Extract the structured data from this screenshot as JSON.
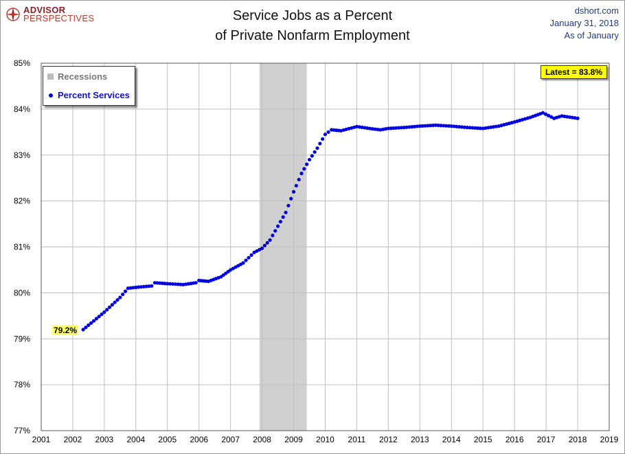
{
  "header": {
    "logo_line1": "ADVISOR",
    "logo_line2": "PERSPECTIVES",
    "title_line1": "Service Jobs as a Percent",
    "title_line2": "of Private Nonfarm Employment",
    "source_line1": "dshort.com",
    "source_line2": "January 31, 2018",
    "source_line3": "As of January"
  },
  "legend": {
    "recessions": "Recessions",
    "series": "Percent Services"
  },
  "annotations": {
    "latest": "Latest = 83.8%",
    "first": "79.2%"
  },
  "colors": {
    "series": "#0000e0",
    "recession": "#d0d0d0",
    "grid": "#bfbfbf",
    "label_bg": "#ffff00"
  },
  "chart_data": {
    "type": "scatter",
    "title": "Service Jobs as a Percent of Private Nonfarm Employment",
    "xlabel": "",
    "ylabel": "",
    "xlim": [
      2001,
      2019
    ],
    "ylim": [
      77,
      85
    ],
    "x_ticks": [
      "2001",
      "2002",
      "2003",
      "2004",
      "2005",
      "2006",
      "2007",
      "2008",
      "2009",
      "2010",
      "2011",
      "2012",
      "2013",
      "2014",
      "2015",
      "2016",
      "2017",
      "2018",
      "2019"
    ],
    "y_ticks": [
      "77%",
      "78%",
      "79%",
      "80%",
      "81%",
      "82%",
      "83%",
      "84%",
      "85%"
    ],
    "grid": true,
    "legend_position": "top-left",
    "recessions": [
      {
        "start": 2007.917,
        "end": 2009.417
      }
    ],
    "series": [
      {
        "name": "Percent Services",
        "points": [
          [
            2002.33,
            79.2
          ],
          [
            2003.0,
            79.58
          ],
          [
            2003.5,
            79.9
          ],
          [
            2003.75,
            80.1
          ],
          [
            2004.0,
            80.12
          ],
          [
            2004.5,
            80.15
          ],
          [
            2004.6,
            80.22
          ],
          [
            2005.0,
            80.2
          ],
          [
            2005.5,
            80.18
          ],
          [
            2005.9,
            80.22
          ],
          [
            2006.0,
            80.27
          ],
          [
            2006.3,
            80.25
          ],
          [
            2006.7,
            80.35
          ],
          [
            2007.0,
            80.5
          ],
          [
            2007.4,
            80.65
          ],
          [
            2007.75,
            80.88
          ],
          [
            2008.0,
            80.97
          ],
          [
            2008.25,
            81.15
          ],
          [
            2008.5,
            81.45
          ],
          [
            2008.75,
            81.75
          ],
          [
            2009.0,
            82.2
          ],
          [
            2009.25,
            82.6
          ],
          [
            2009.5,
            82.9
          ],
          [
            2009.75,
            83.15
          ],
          [
            2010.0,
            83.45
          ],
          [
            2010.2,
            83.55
          ],
          [
            2010.5,
            83.53
          ],
          [
            2011.0,
            83.62
          ],
          [
            2011.5,
            83.57
          ],
          [
            2011.75,
            83.55
          ],
          [
            2012.0,
            83.58
          ],
          [
            2012.5,
            83.6
          ],
          [
            2013.0,
            83.63
          ],
          [
            2013.5,
            83.65
          ],
          [
            2014.0,
            83.63
          ],
          [
            2014.5,
            83.6
          ],
          [
            2015.0,
            83.58
          ],
          [
            2015.5,
            83.63
          ],
          [
            2016.0,
            83.72
          ],
          [
            2016.5,
            83.82
          ],
          [
            2016.9,
            83.92
          ],
          [
            2017.25,
            83.8
          ],
          [
            2017.5,
            83.85
          ],
          [
            2018.0,
            83.8
          ]
        ]
      }
    ]
  }
}
